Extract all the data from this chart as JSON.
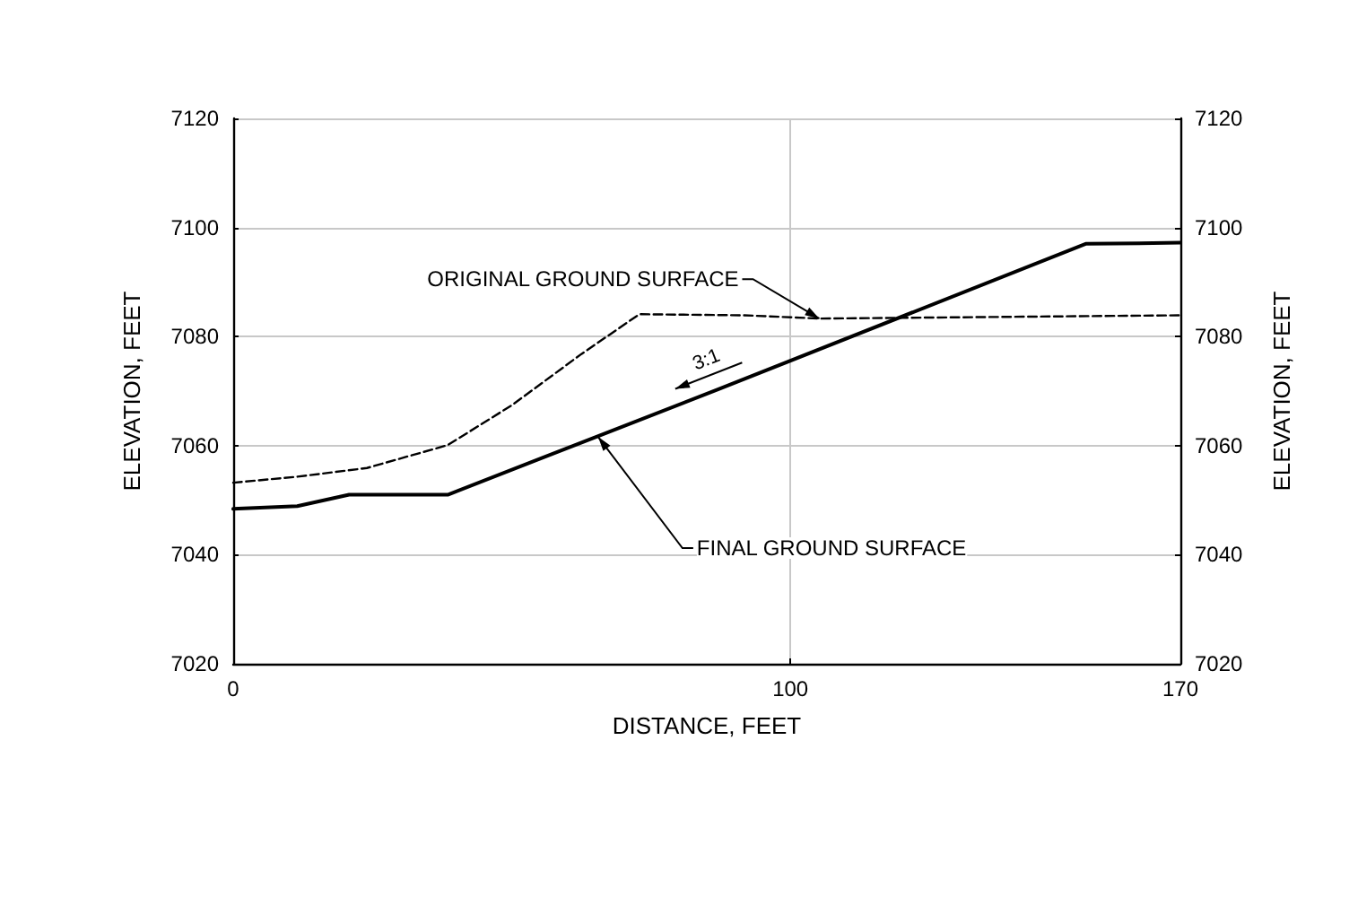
{
  "chart_data": {
    "type": "line",
    "xlabel": "DISTANCE, FEET",
    "ylabel": "ELEVATION, FEET",
    "y2label": "ELEVATION, FEET",
    "xlim": [
      0,
      170
    ],
    "xticks": [
      0,
      100,
      170
    ],
    "ylim": [
      7020,
      7120
    ],
    "yticks": [
      7020,
      7040,
      7060,
      7080,
      7100,
      7120
    ],
    "y2lim": [
      7020,
      7120
    ],
    "y2ticks": [
      7020,
      7040,
      7060,
      7080,
      7100,
      7120
    ],
    "grid": true,
    "marker": "none",
    "series": [
      {
        "color": "#000000",
        "line_style": "dashed",
        "x": [
          0,
          11.5,
          24,
          38.5,
          50,
          62.5,
          72.9,
          91.7,
          105.2,
          170
        ],
        "values": [
          7053.2,
          7054.3,
          7055.9,
          7060.1,
          7067.4,
          7076.8,
          7084.1,
          7083.9,
          7083.3,
          7083.9
        ]
      },
      {
        "color": "#000000",
        "line_style": "solid",
        "x": [
          0,
          11.5,
          20.8,
          38.5,
          64.6,
          87,
          153,
          170
        ],
        "values": [
          7048.4,
          7048.9,
          7051,
          7051,
          7061.4,
          7070.3,
          7097,
          7097.2
        ]
      }
    ],
    "annotations": [
      {
        "text": "ORIGINAL GROUND SURFACE",
        "x": 105.2,
        "y": 7083.3
      },
      {
        "text": "FINAL GROUND SURFACE",
        "x": 65.5,
        "y": 7061.6
      },
      {
        "text": "3:1",
        "x": 87,
        "y": 7070.3
      }
    ]
  }
}
